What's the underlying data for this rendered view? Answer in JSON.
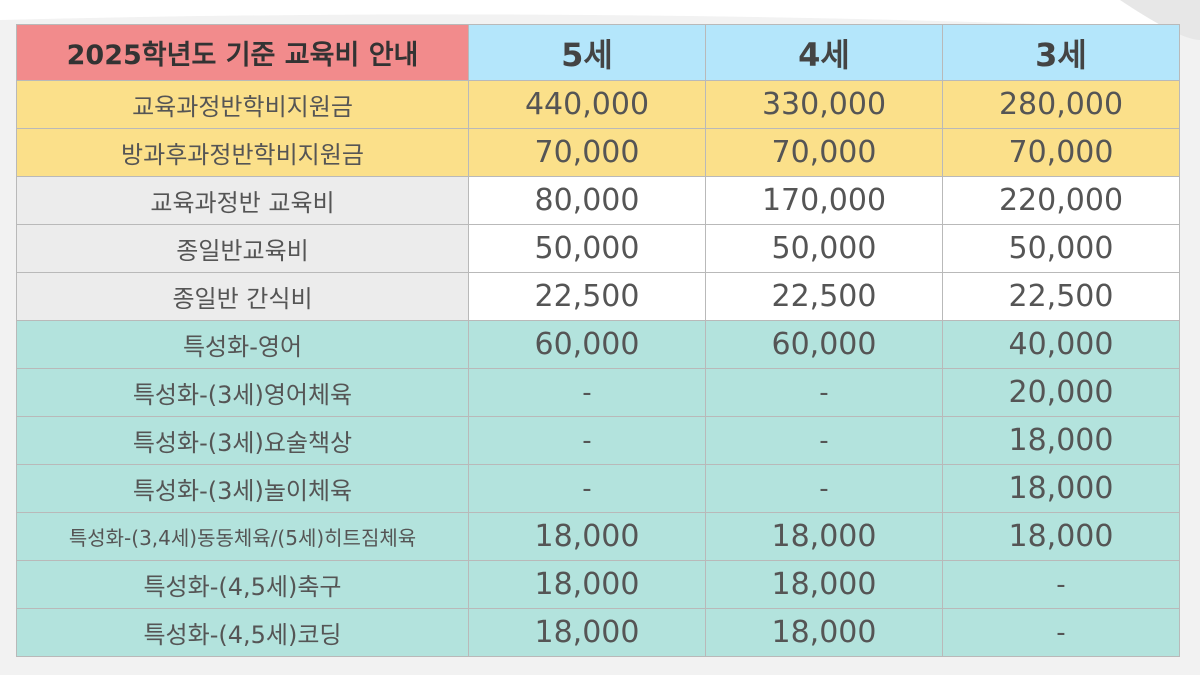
{
  "header": {
    "title": "2025학년도 기준 교육비 안내",
    "ages": [
      "5세",
      "4세",
      "3세"
    ]
  },
  "rows": [
    {
      "label": "교육과정반학비지원금",
      "values": [
        "440,000",
        "330,000",
        "280,000"
      ],
      "group": "yellow"
    },
    {
      "label": "방과후과정반학비지원금",
      "values": [
        "70,000",
        "70,000",
        "70,000"
      ],
      "group": "yellow"
    },
    {
      "label": "교육과정반 교육비",
      "values": [
        "80,000",
        "170,000",
        "220,000"
      ],
      "group": "gray"
    },
    {
      "label": "종일반교육비",
      "values": [
        "50,000",
        "50,000",
        "50,000"
      ],
      "group": "gray"
    },
    {
      "label": "종일반 간식비",
      "values": [
        "22,500",
        "22,500",
        "22,500"
      ],
      "group": "gray"
    },
    {
      "label": "특성화-영어",
      "values": [
        "60,000",
        "60,000",
        "40,000"
      ],
      "group": "teal"
    },
    {
      "label": "특성화-(3세)영어체육",
      "values": [
        "-",
        "-",
        "20,000"
      ],
      "group": "teal"
    },
    {
      "label": "특성화-(3세)요술책상",
      "values": [
        "-",
        "-",
        "18,000"
      ],
      "group": "teal"
    },
    {
      "label": "특성화-(3세)놀이체육",
      "values": [
        "-",
        "-",
        "18,000"
      ],
      "group": "teal"
    },
    {
      "label": "특성화-(3,4세)동동체육/(5세)히트짐체육",
      "values": [
        "18,000",
        "18,000",
        "18,000"
      ],
      "group": "teal"
    },
    {
      "label": "특성화-(4,5세)축구",
      "values": [
        "18,000",
        "18,000",
        "-"
      ],
      "group": "teal"
    },
    {
      "label": "특성화-(4,5세)코딩",
      "values": [
        "18,000",
        "18,000",
        "-"
      ],
      "group": "teal"
    }
  ],
  "colors": {
    "title_bg": "#f28b8c",
    "age_header_bg": "#b4e6fb",
    "subsidy_bg": "#fbe08a",
    "fee_label_bg": "#ececec",
    "specialized_bg": "#b3e3dd"
  }
}
